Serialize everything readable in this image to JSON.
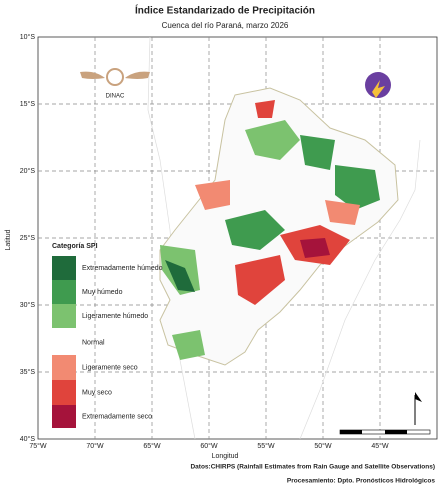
{
  "title": "Índice Estandarizado de Precipitación",
  "subtitle": "Cuenca del río Paraná, marzo 2026",
  "logo_text": "DINAC",
  "map": {
    "xlabel": "Longitud",
    "ylabel": "Latitud",
    "xlim": [
      -75,
      -40
    ],
    "ylim": [
      -40,
      -10
    ],
    "xticks": [
      {
        "value": -75,
        "label": "75°W"
      },
      {
        "value": -70,
        "label": "70°W"
      },
      {
        "value": -65,
        "label": "65°W"
      },
      {
        "value": -60,
        "label": "60°W"
      },
      {
        "value": -55,
        "label": "55°W"
      },
      {
        "value": -50,
        "label": "50°W"
      },
      {
        "value": -45,
        "label": "45°W"
      }
    ],
    "yticks": [
      {
        "value": -10,
        "label": "10°S"
      },
      {
        "value": -15,
        "label": "15°S"
      },
      {
        "value": -20,
        "label": "20°S"
      },
      {
        "value": -25,
        "label": "25°S"
      },
      {
        "value": -30,
        "label": "30°S"
      },
      {
        "value": -35,
        "label": "35°S"
      },
      {
        "value": -40,
        "label": "40°S"
      }
    ],
    "grid": true
  },
  "legend": {
    "title": "Categoría SPI",
    "items": [
      {
        "name": "Extremadamente húmedo",
        "color": "#1f6b3b"
      },
      {
        "name": "Muy húmedo",
        "color": "#3f9b4f"
      },
      {
        "name": "Ligeramente húmedo",
        "color": "#7cc26f"
      },
      {
        "name": "Normal",
        "color": "#ffffff"
      },
      {
        "name": "Ligeramente seco",
        "color": "#f28a72"
      },
      {
        "name": "Muy seco",
        "color": "#e0443c"
      },
      {
        "name": "Extremadamente seco",
        "color": "#a5133b"
      }
    ]
  },
  "footer": [
    "Datos:CHIRPS (Rainfall Estimates from Rain Gauge and Satellite Observations)",
    "Procesamiento: Dpto. Pronósticos Hidrológicos"
  ]
}
